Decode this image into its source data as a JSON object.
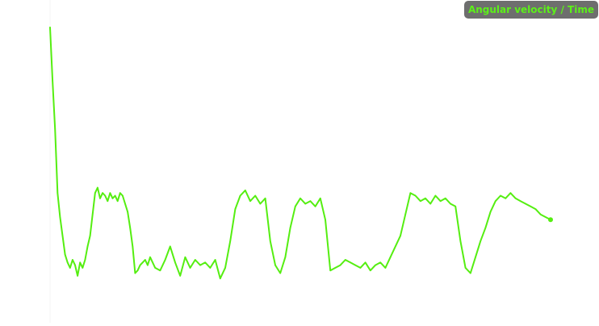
{
  "chart_data": {
    "type": "line",
    "title": "",
    "xlabel": "",
    "ylabel": "",
    "grid": false,
    "legend_position": "top-right",
    "xlim": [
      0,
      100
    ],
    "ylim": [
      0,
      100
    ],
    "series": [
      {
        "name": "Angular velocity / Time",
        "color": "#55ee11",
        "end_marker": true,
        "x": [
          0,
          0.5,
          1,
          1.5,
          2,
          2.5,
          3,
          3.5,
          4,
          4.5,
          5,
          5.5,
          6,
          6.5,
          7,
          7.5,
          8,
          8.5,
          9,
          9.5,
          10,
          10.5,
          11,
          11.5,
          12,
          12.5,
          13,
          13.5,
          14,
          14.5,
          15,
          15.5,
          16,
          16.5,
          17,
          17.5,
          18,
          18.5,
          19,
          19.5,
          20,
          21,
          22,
          23,
          24,
          25,
          26,
          27,
          28,
          29,
          30,
          31,
          32,
          33,
          34,
          35,
          36,
          37,
          38,
          39,
          40,
          41,
          42,
          43,
          44,
          45,
          46,
          47,
          48,
          49,
          50,
          51,
          52,
          53,
          54,
          55,
          56,
          57,
          58,
          59,
          60,
          61,
          62,
          63,
          64,
          65,
          66,
          67,
          68,
          69,
          70,
          71,
          72,
          73,
          74,
          75,
          76,
          77,
          78,
          79,
          80,
          81,
          82,
          83,
          84,
          85,
          86,
          87,
          88,
          89,
          90,
          91,
          92,
          93,
          94,
          95,
          96,
          97,
          98,
          99,
          100
        ],
        "y": [
          100,
          80,
          62,
          38,
          29,
          22,
          15,
          12,
          10,
          13,
          11,
          7,
          12,
          10,
          13,
          18,
          22,
          30,
          38,
          40,
          36,
          38,
          37,
          35,
          38,
          36,
          37,
          35,
          38,
          37,
          34,
          31,
          25,
          18,
          8,
          9,
          11,
          12,
          13,
          11,
          14,
          10,
          9,
          13,
          18,
          12,
          7,
          14,
          10,
          13,
          11,
          12,
          10,
          13,
          6,
          10,
          20,
          32,
          37,
          39,
          35,
          37,
          34,
          36,
          20,
          11,
          8,
          14,
          25,
          33,
          36,
          34,
          35,
          33,
          36,
          28,
          9,
          10,
          11,
          13,
          12,
          11,
          10,
          12,
          9,
          11,
          12,
          10,
          14,
          18,
          22,
          30,
          38,
          37,
          35,
          36,
          34,
          37,
          35,
          36,
          34,
          33,
          20,
          10,
          8,
          14,
          20,
          25,
          31,
          35,
          37,
          36,
          38,
          36,
          35,
          34,
          33,
          32,
          30,
          29,
          28
        ]
      }
    ]
  }
}
